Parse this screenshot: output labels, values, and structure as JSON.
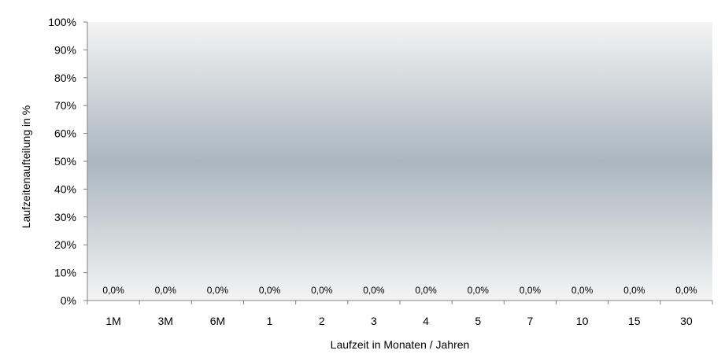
{
  "chart_data": {
    "type": "bar",
    "title": "",
    "xlabel": "Laufzeit in Monaten / Jahren",
    "ylabel": "Laufzeitenaufteilung in %",
    "categories": [
      "1M",
      "3M",
      "6M",
      "1",
      "2",
      "3",
      "4",
      "5",
      "7",
      "10",
      "15",
      "30"
    ],
    "values": [
      0,
      0,
      0,
      0,
      0,
      0,
      0,
      0,
      0,
      0,
      0,
      0
    ],
    "data_labels": [
      "0,0%",
      "0,0%",
      "0,0%",
      "0,0%",
      "0,0%",
      "0,0%",
      "0,0%",
      "0,0%",
      "0,0%",
      "0,0%",
      "0,0%",
      "0,0%"
    ],
    "y_ticks": [
      "0%",
      "10%",
      "20%",
      "30%",
      "40%",
      "50%",
      "60%",
      "70%",
      "80%",
      "90%",
      "100%"
    ],
    "ylim": [
      0,
      100
    ],
    "grid": false,
    "legend": "none",
    "colors": {
      "plot_background_edge": "#f4f4f4",
      "plot_background_center": "#aab6bf",
      "axis": "#808080"
    }
  }
}
